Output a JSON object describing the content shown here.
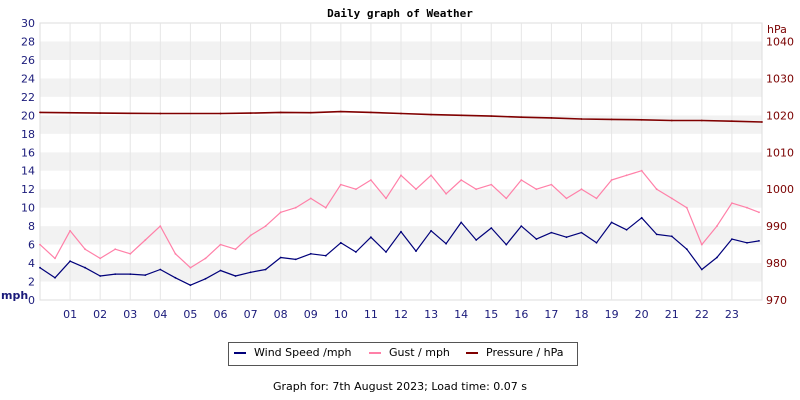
{
  "chart_data": {
    "type": "line",
    "title": "Daily graph of Weather",
    "left_axis": {
      "label": "mph",
      "ylim": [
        0,
        30
      ],
      "ticks": [
        0,
        2,
        4,
        6,
        8,
        10,
        12,
        14,
        16,
        18,
        20,
        22,
        24,
        26,
        28,
        30
      ],
      "color": "#1a1a7a"
    },
    "right_axis": {
      "label": "hPa",
      "ylim": [
        970,
        1045
      ],
      "ticks": [
        970,
        980,
        990,
        1000,
        1010,
        1020,
        1030,
        1040
      ],
      "color": "#7a0000"
    },
    "x_ticks": [
      "01",
      "02",
      "03",
      "04",
      "05",
      "06",
      "07",
      "08",
      "09",
      "10",
      "11",
      "12",
      "13",
      "14",
      "15",
      "16",
      "17",
      "18",
      "19",
      "20",
      "21",
      "22",
      "23"
    ],
    "xlim": [
      0,
      24
    ],
    "grid": true,
    "band_colors": [
      "#f2f2f2",
      "#ffffff"
    ],
    "series": [
      {
        "name": "Wind Speed /mph",
        "axis": "left",
        "color": "#00007a",
        "hours": [
          0,
          0.5,
          1,
          1.5,
          2,
          2.5,
          3,
          3.5,
          4,
          4.5,
          5,
          5.5,
          6,
          6.5,
          7,
          7.5,
          8,
          8.5,
          9,
          9.5,
          10,
          10.5,
          11,
          11.5,
          12,
          12.5,
          13,
          13.5,
          14,
          14.5,
          15,
          15.5,
          16,
          16.5,
          17,
          17.5,
          18,
          18.5,
          19,
          19.5,
          20,
          20.5,
          21,
          21.5,
          22,
          22.5,
          23,
          23.5,
          23.9
        ],
        "values": [
          3.5,
          2.4,
          4.2,
          3.5,
          2.6,
          2.8,
          2.8,
          2.7,
          3.3,
          2.4,
          1.6,
          2.3,
          3.2,
          2.6,
          3.0,
          3.3,
          4.6,
          4.4,
          5.0,
          4.8,
          6.2,
          5.2,
          6.8,
          5.2,
          7.4,
          5.3,
          7.5,
          6.1,
          8.4,
          6.5,
          7.8,
          6.0,
          8.0,
          6.6,
          7.3,
          6.8,
          7.3,
          6.2,
          8.4,
          7.6,
          8.9,
          7.1,
          6.9,
          5.5,
          3.3,
          4.6,
          6.6,
          6.2,
          6.4
        ]
      },
      {
        "name": "Gust / mph",
        "axis": "left",
        "color": "#ff80a8",
        "hours": [
          0,
          0.5,
          1,
          1.5,
          2,
          2.5,
          3,
          3.5,
          4,
          4.5,
          5,
          5.5,
          6,
          6.5,
          7,
          7.5,
          8,
          8.5,
          9,
          9.5,
          10,
          10.5,
          11,
          11.5,
          12,
          12.5,
          13,
          13.5,
          14,
          14.5,
          15,
          15.5,
          16,
          16.5,
          17,
          17.5,
          18,
          18.5,
          19,
          19.5,
          20,
          20.5,
          21,
          21.5,
          22,
          22.5,
          23,
          23.5,
          23.9
        ],
        "values": [
          6.0,
          4.5,
          7.5,
          5.5,
          4.5,
          5.5,
          5.0,
          6.5,
          8.0,
          5.0,
          3.5,
          4.5,
          6.0,
          5.5,
          7.0,
          8.0,
          9.5,
          10.0,
          11.0,
          10.0,
          12.5,
          12.0,
          13.0,
          11.0,
          13.5,
          12.0,
          13.5,
          11.5,
          13.0,
          12.0,
          12.5,
          11.0,
          13.0,
          12.0,
          12.5,
          11.0,
          12.0,
          11.0,
          13.0,
          13.5,
          14.0,
          12.0,
          11.0,
          10.0,
          6.0,
          8.0,
          10.5,
          10.0,
          9.5
        ]
      },
      {
        "name": "Pressure / hPa",
        "axis": "right",
        "color": "#800000",
        "hours": [
          0,
          2,
          4,
          6,
          7,
          8,
          9,
          10,
          11,
          12,
          13,
          14,
          15,
          16,
          17,
          18,
          19,
          20,
          21,
          22,
          23,
          24
        ],
        "values": [
          1020.8,
          1020.6,
          1020.5,
          1020.5,
          1020.6,
          1020.8,
          1020.7,
          1021.0,
          1020.8,
          1020.5,
          1020.2,
          1020.0,
          1019.8,
          1019.5,
          1019.3,
          1019.0,
          1018.9,
          1018.8,
          1018.6,
          1018.6,
          1018.4,
          1018.2
        ]
      }
    ],
    "legend_placement": "bottom"
  },
  "legend": {
    "wind_label": "Wind Speed /mph",
    "gust_label": "Gust / mph",
    "pressure_label": "Pressure / hPa"
  },
  "footer": {
    "text": "Graph for: 7th August 2023; Load time: 0.07 s"
  }
}
